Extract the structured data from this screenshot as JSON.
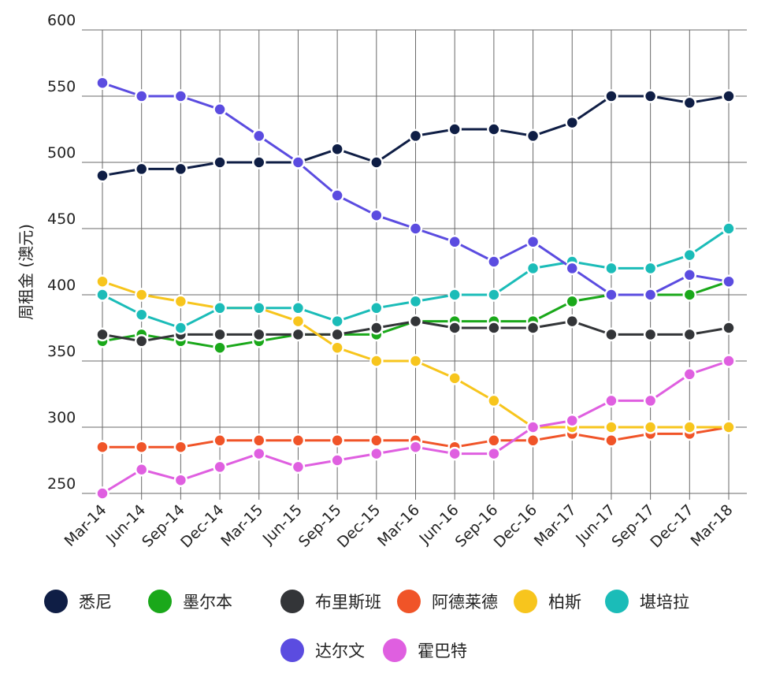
{
  "chart_data": {
    "type": "line",
    "title": "",
    "xlabel": "",
    "ylabel": "周租金 (澳元)",
    "ylim": [
      250,
      600
    ],
    "yticks": [
      250,
      300,
      350,
      400,
      450,
      500,
      550,
      600
    ],
    "grid": true,
    "legend_position": "bottom",
    "categories": [
      "Mar-14",
      "Jun-14",
      "Sep-14",
      "Dec-14",
      "Mar-15",
      "Jun-15",
      "Sep-15",
      "Dec-15",
      "Mar-16",
      "Jun-16",
      "Sep-16",
      "Dec-16",
      "Mar-17",
      "Jun-17",
      "Sep-17",
      "Dec-17",
      "Mar-18"
    ],
    "series": [
      {
        "name": "悉尼",
        "color": "#0f1e45",
        "values": [
          490,
          495,
          495,
          500,
          500,
          500,
          510,
          500,
          520,
          525,
          525,
          520,
          530,
          550,
          550,
          545,
          550
        ]
      },
      {
        "name": "墨尔本",
        "color": "#1aa81a",
        "values": [
          365,
          370,
          365,
          360,
          365,
          370,
          370,
          370,
          380,
          380,
          380,
          380,
          395,
          400,
          400,
          400,
          410
        ]
      },
      {
        "name": "布里斯班",
        "color": "#333538",
        "values": [
          370,
          365,
          370,
          370,
          370,
          370,
          370,
          375,
          380,
          375,
          375,
          375,
          380,
          370,
          370,
          370,
          375
        ]
      },
      {
        "name": "阿德莱德",
        "color": "#f05428",
        "values": [
          285,
          285,
          285,
          290,
          290,
          290,
          290,
          290,
          290,
          285,
          290,
          290,
          295,
          290,
          295,
          295,
          300
        ]
      },
      {
        "name": "柏斯",
        "color": "#f7c51d",
        "values": [
          410,
          400,
          395,
          390,
          390,
          380,
          360,
          350,
          350,
          337,
          320,
          300,
          300,
          300,
          300,
          300,
          300
        ]
      },
      {
        "name": "堪培拉",
        "color": "#1bbcb8",
        "values": [
          400,
          385,
          375,
          390,
          390,
          390,
          380,
          390,
          395,
          400,
          400,
          420,
          425,
          420,
          420,
          430,
          450
        ]
      },
      {
        "name": "达尔文",
        "color": "#5b4ce0",
        "values": [
          560,
          550,
          550,
          540,
          520,
          500,
          475,
          460,
          450,
          440,
          425,
          440,
          420,
          400,
          400,
          415,
          410
        ]
      },
      {
        "name": "霍巴特",
        "color": "#df5fe0",
        "values": [
          250,
          268,
          260,
          270,
          280,
          270,
          275,
          280,
          285,
          280,
          280,
          300,
          305,
          320,
          320,
          340,
          350
        ]
      }
    ]
  }
}
